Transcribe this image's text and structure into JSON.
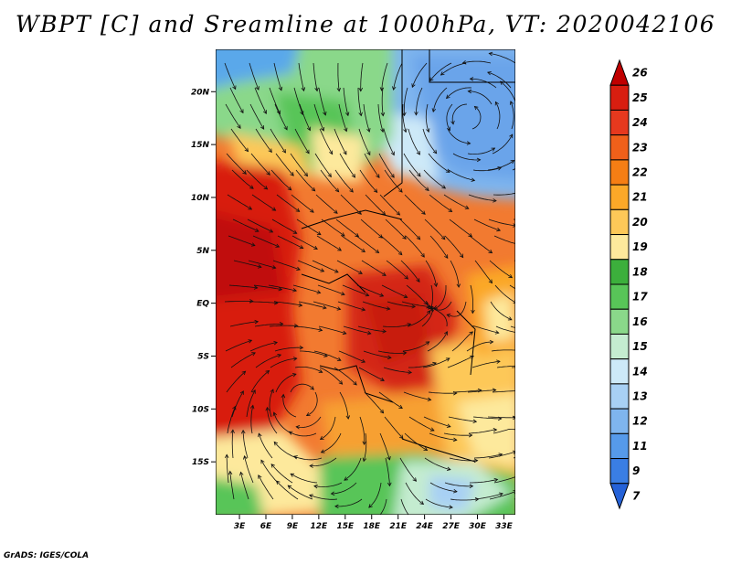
{
  "title": "WBPT [C] and Sreamline at 1000hPa, VT: 2020042106",
  "footer": "GrADS: IGES/COLA",
  "map": {
    "region": "Central Africa",
    "lat_labels": [
      "20N",
      "15N",
      "10N",
      "5N",
      "EQ",
      "5S",
      "10S",
      "15S"
    ],
    "lat_values": [
      20,
      15,
      10,
      5,
      0,
      -5,
      -10,
      -15
    ],
    "lon_labels": [
      "3E",
      "6E",
      "9E",
      "12E",
      "15E",
      "18E",
      "21E",
      "24E",
      "27E",
      "30E",
      "33E"
    ],
    "lon_values": [
      3,
      6,
      9,
      12,
      15,
      18,
      21,
      24,
      27,
      30,
      33
    ],
    "lon_range": [
      0.3,
      34.3
    ],
    "lat_range": [
      -20,
      24
    ]
  },
  "colorbar": {
    "labels": [
      "26",
      "25",
      "24",
      "23",
      "22",
      "21",
      "20",
      "19",
      "18",
      "17",
      "16",
      "15",
      "14",
      "13",
      "12",
      "11",
      "9",
      "7"
    ],
    "colors": [
      "#c00000",
      "#d81e10",
      "#e6391e",
      "#f0601a",
      "#f57e14",
      "#fba828",
      "#fdc858",
      "#fde99c",
      "#3caf3c",
      "#58c558",
      "#8ad88a",
      "#c4ecd0",
      "#cde9f8",
      "#a8d0f4",
      "#7fb5ee",
      "#569aea",
      "#3a7ee4",
      "#2562d8"
    ]
  },
  "colors": {
    "warm": "#e63c1e",
    "cool": "#7fb5ee",
    "green": "#58c558"
  }
}
